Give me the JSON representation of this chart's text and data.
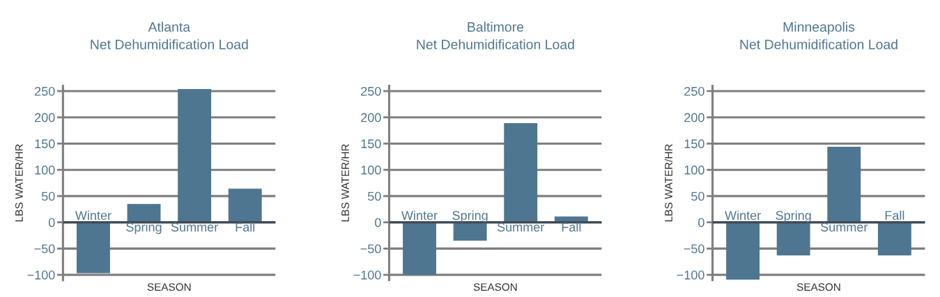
{
  "chart_data": [
    {
      "type": "bar",
      "title": "Atlanta\nNet Dehumidification Load",
      "xlabel": "SEASON",
      "ylabel": "LBS WATER/HR",
      "categories": [
        "Winter",
        "Spring",
        "Summer",
        "Fall"
      ],
      "values": [
        -97,
        35,
        254,
        64
      ],
      "color": "#4f7690",
      "ylim": [
        -110,
        260
      ],
      "yticks": [
        -100,
        -50,
        0,
        50,
        100,
        150,
        200,
        250
      ],
      "grid": "y",
      "legend": false
    },
    {
      "type": "bar",
      "title": "Baltimore\nNet Dehumidification Load",
      "xlabel": "SEASON",
      "ylabel": "LBS WATER/HR",
      "categories": [
        "Winter",
        "Spring",
        "Summer",
        "Fall"
      ],
      "values": [
        -100,
        -35,
        189,
        11
      ],
      "color": "#4f7690",
      "ylim": [
        -110,
        260
      ],
      "yticks": [
        -100,
        -50,
        0,
        50,
        100,
        150,
        200,
        250
      ],
      "grid": "y",
      "legend": false
    },
    {
      "type": "bar",
      "title": "Minneapolis\nNet Dehumidification Load",
      "xlabel": "SEASON",
      "ylabel": "LBS WATER/HR",
      "categories": [
        "Winter",
        "Spring",
        "Summer",
        "Fall"
      ],
      "values": [
        -109,
        -63,
        144,
        -63
      ],
      "color": "#4f7690",
      "ylim": [
        -110,
        260
      ],
      "yticks": [
        -100,
        -50,
        0,
        50,
        100,
        150,
        200,
        250
      ],
      "grid": "y",
      "legend": false
    }
  ]
}
